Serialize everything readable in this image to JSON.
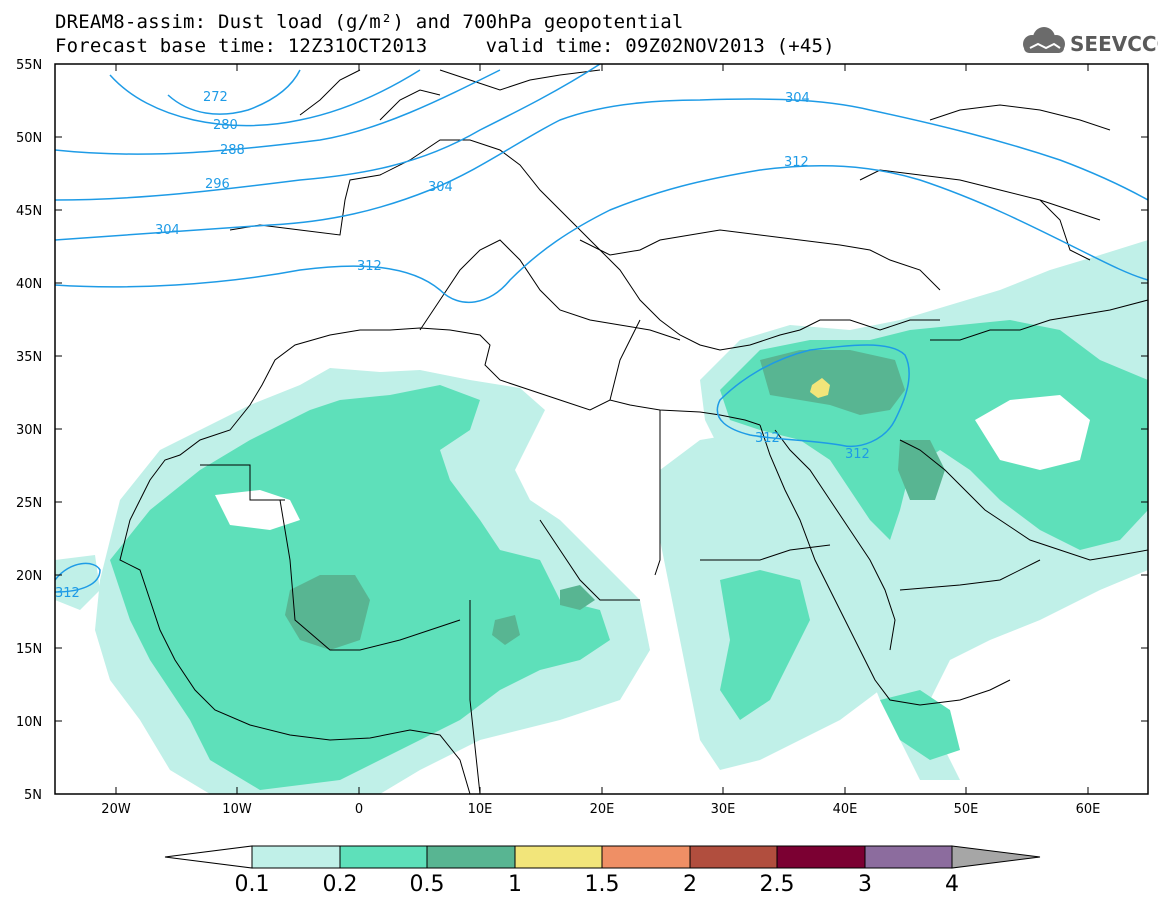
{
  "header": {
    "title_line1": "DREAM8-assim: Dust load (g/m²) and 700hPa geopotential",
    "title_line2": "Forecast base time: 12Z31OCT2013     valid time: 09Z02NOV2013 (+45)"
  },
  "logo": {
    "text": "SEEVCCC",
    "icon": "cloud-icon"
  },
  "map": {
    "lat_labels": [
      "55N",
      "50N",
      "45N",
      "40N",
      "35N",
      "30N",
      "25N",
      "20N",
      "15N",
      "10N",
      "5N"
    ],
    "lon_labels": [
      "20W",
      "10W",
      "0",
      "10E",
      "20E",
      "30E",
      "40E",
      "50E",
      "60E"
    ],
    "contour_labels": [
      "272",
      "280",
      "288",
      "296",
      "304",
      "304",
      "304",
      "312",
      "312",
      "312",
      "312",
      "312"
    ],
    "colors": {
      "frame": "#000000",
      "contour": "#1E9BE6",
      "coast": "#000000"
    }
  },
  "colorbar": {
    "labels": [
      "0.1",
      "0.2",
      "0.5",
      "1",
      "1.5",
      "2",
      "2.5",
      "3",
      "4"
    ],
    "colors": [
      "#FFFFFF",
      "#C0F0E8",
      "#5EE0BA",
      "#58B592",
      "#F2E57A",
      "#EF8F65",
      "#B14E3E",
      "#7B0032",
      "#8C6C9E",
      "#A6A6A6"
    ]
  }
}
